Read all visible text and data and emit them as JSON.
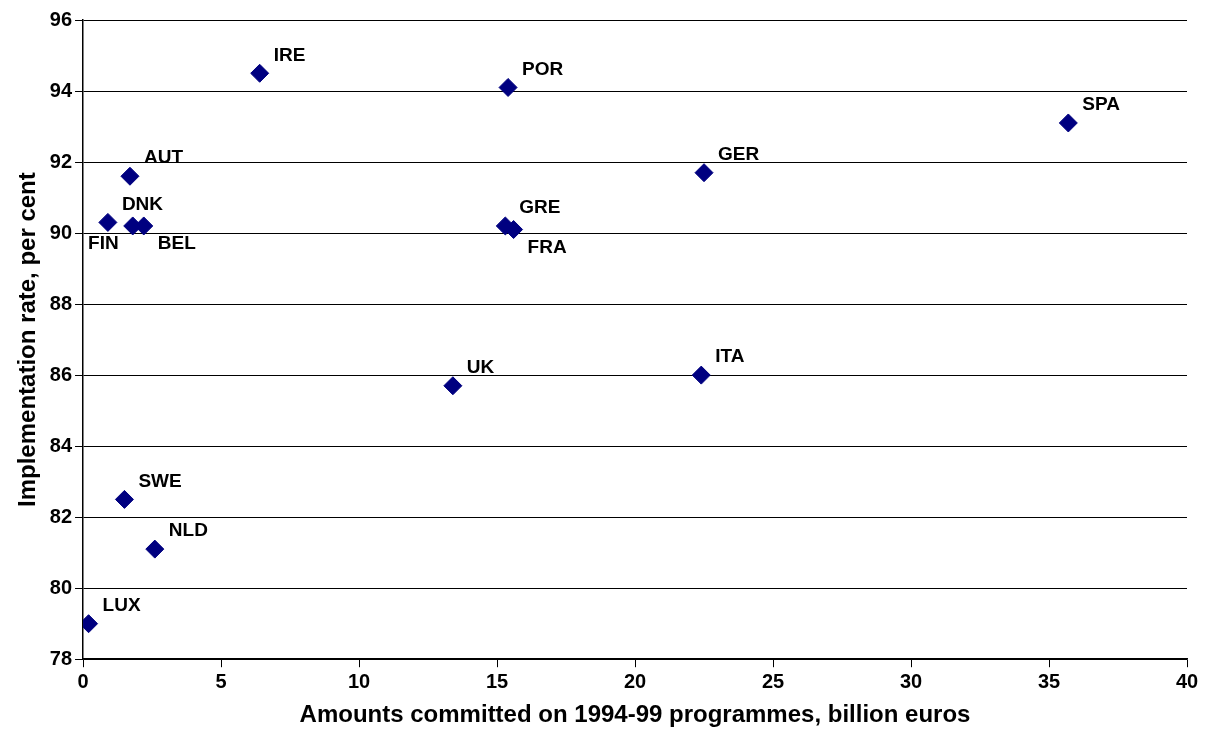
{
  "chart_data": {
    "type": "scatter",
    "xlabel": "Amounts committed on 1994-99 programmes, billion euros",
    "ylabel": "Implementation rate, per cent",
    "series": [
      {
        "color": "#000080",
        "x": [
          0.9,
          1.8,
          2.2,
          1.7,
          6.4,
          15.4,
          15.3,
          15.6,
          13.4,
          22.4,
          22.5,
          35.7,
          1.5,
          2.6,
          0.2
        ],
        "values": [
          90.3,
          90.2,
          90.2,
          91.6,
          94.5,
          94.1,
          90.2,
          90.1,
          85.7,
          86.0,
          91.7,
          93.1,
          82.5,
          81.1,
          79.0
        ]
      }
    ],
    "annotations": [
      {
        "text": "DNK",
        "x": 0.9,
        "y": 90.3
      },
      {
        "text": "FIN",
        "x": 1.8,
        "y": 90.2
      },
      {
        "text": "BEL",
        "x": 2.2,
        "y": 90.2
      },
      {
        "text": "AUT",
        "x": 1.7,
        "y": 91.6
      },
      {
        "text": "IRE",
        "x": 6.4,
        "y": 94.5
      },
      {
        "text": "POR",
        "x": 15.4,
        "y": 94.1
      },
      {
        "text": "GRE",
        "x": 15.3,
        "y": 90.2
      },
      {
        "text": "FRA",
        "x": 15.6,
        "y": 90.1
      },
      {
        "text": "UK",
        "x": 13.4,
        "y": 85.7
      },
      {
        "text": "ITA",
        "x": 22.4,
        "y": 86.0
      },
      {
        "text": "GER",
        "x": 22.5,
        "y": 91.7
      },
      {
        "text": "SPA",
        "x": 35.7,
        "y": 93.1
      },
      {
        "text": "SWE",
        "x": 1.5,
        "y": 82.5
      },
      {
        "text": "NLD",
        "x": 2.6,
        "y": 81.1
      },
      {
        "text": "LUX",
        "x": 0.2,
        "y": 79.0
      }
    ],
    "xlim": [
      0,
      40
    ],
    "xticks": [
      0,
      5,
      10,
      15,
      20,
      25,
      30,
      35,
      40
    ],
    "ylim": [
      78,
      96
    ],
    "yticks": [
      78,
      80,
      82,
      84,
      86,
      88,
      90,
      92,
      94,
      96
    ],
    "grid": "y",
    "marker": "diamond",
    "legend": false
  }
}
